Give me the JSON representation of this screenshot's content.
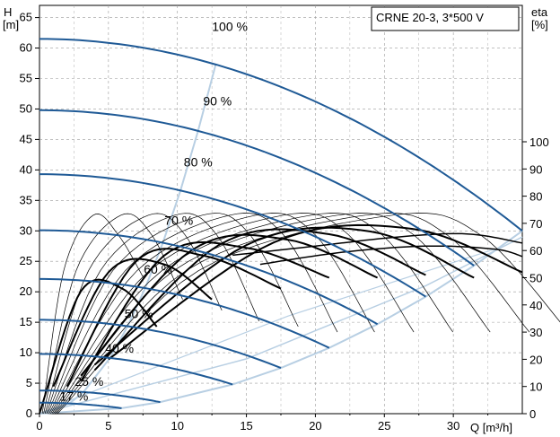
{
  "chart_data": {
    "type": "line",
    "title": "CRNE 20-3, 3*500 V",
    "x_axis": {
      "label": "Q [m³/h]",
      "range": [
        0,
        35
      ],
      "ticks": [
        0,
        5,
        10,
        15,
        20,
        25,
        30
      ]
    },
    "y_left": {
      "label_line1": "H",
      "label_line2": "[m]",
      "range": [
        0,
        67
      ],
      "ticks": [
        0,
        5,
        10,
        15,
        20,
        25,
        30,
        35,
        40,
        45,
        50,
        55,
        60,
        65
      ]
    },
    "y_right": {
      "label_line1": "eta",
      "label_line2": "[%]",
      "range": [
        0,
        100
      ],
      "ticks": [
        0,
        10,
        20,
        30,
        40,
        50,
        60,
        70,
        80,
        90,
        100
      ]
    },
    "grid": true,
    "colors": {
      "head_curves": "#1f5a96",
      "efficiency": "#000000",
      "envelope": "#b8cfe3",
      "grid": "#9a9a9a"
    },
    "head_curves": [
      {
        "name": "100 %",
        "label_at": [
          13.8,
          62.8
        ],
        "h0": 61.5,
        "q_max": 35,
        "h_end": 30
      },
      {
        "name": "90 %",
        "label_at": [
          12.9,
          50.6
        ],
        "h0": 49.8,
        "q_max": 31.5,
        "h_end": 24.3
      },
      {
        "name": "80 %",
        "label_at": [
          11.5,
          40.6
        ],
        "h0": 39.3,
        "q_max": 28,
        "h_end": 19.2
      },
      {
        "name": "70 %",
        "label_at": [
          10.1,
          31.0
        ],
        "h0": 30.1,
        "q_max": 24.5,
        "h_end": 14.7
      },
      {
        "name": "60 %",
        "label_at": [
          8.6,
          23.0
        ],
        "h0": 22.1,
        "q_max": 21,
        "h_end": 10.8
      },
      {
        "name": "50 %",
        "label_at": [
          7.2,
          15.7
        ],
        "h0": 15.4,
        "q_max": 17.5,
        "h_end": 7.5
      },
      {
        "name": "40 %",
        "label_at": [
          5.8,
          10.0
        ],
        "h0": 9.8,
        "q_max": 14,
        "h_end": 4.8
      },
      {
        "name": "25 %",
        "label_at": [
          3.6,
          4.6
        ],
        "h0": 3.8,
        "q_max": 8.75,
        "h_end": 1.9
      },
      {
        "name": "17 %",
        "label_at": [
          2.5,
          2.1
        ],
        "h0": 1.8,
        "q_max": 5.95,
        "h_end": 0.9
      }
    ],
    "right_extra_curves": [
      {
        "q": [
          14,
          20,
          26,
          31,
          35
        ],
        "h": [
          26,
          27.5,
          29,
          29.5,
          28
        ]
      },
      {
        "q": [
          16,
          22,
          28,
          33,
          35
        ],
        "h": [
          24.5,
          26.5,
          27.5,
          27,
          25.8
        ]
      }
    ],
    "efficiency_curves": {
      "thin_peak_eta": 73,
      "thin_peak_q": [
        3.9,
        5.9,
        7.9,
        9.8,
        11.8,
        13.8,
        15.7,
        17.7,
        19.7,
        21.6,
        23.6,
        25.6
      ],
      "thin_end_eta": [
        50,
        42,
        38,
        34,
        32,
        30,
        30,
        30,
        30,
        30,
        30,
        30
      ],
      "bold_curves": [
        {
          "q": [
            0,
            3,
            6,
            8.5
          ],
          "eta": [
            0,
            45,
            46,
            32
          ]
        },
        {
          "q": [
            1,
            5,
            9,
            12.5
          ],
          "eta": [
            10,
            52,
            55,
            42
          ]
        },
        {
          "q": [
            2,
            7,
            12,
            17.5
          ],
          "eta": [
            10,
            56,
            58,
            46
          ]
        },
        {
          "q": [
            3,
            9,
            15,
            21
          ],
          "eta": [
            12,
            58,
            61,
            50
          ]
        },
        {
          "q": [
            3,
            11,
            18,
            24.5
          ],
          "eta": [
            14,
            60,
            64,
            50
          ]
        },
        {
          "q": [
            4,
            13,
            21,
            28
          ],
          "eta": [
            16,
            62,
            66,
            51
          ]
        },
        {
          "q": [
            4,
            15,
            24,
            31.5
          ],
          "eta": [
            18,
            62,
            67,
            50
          ]
        },
        {
          "q": [
            5,
            17,
            27,
            35
          ],
          "eta": [
            20,
            63,
            68,
            52
          ]
        }
      ]
    }
  }
}
